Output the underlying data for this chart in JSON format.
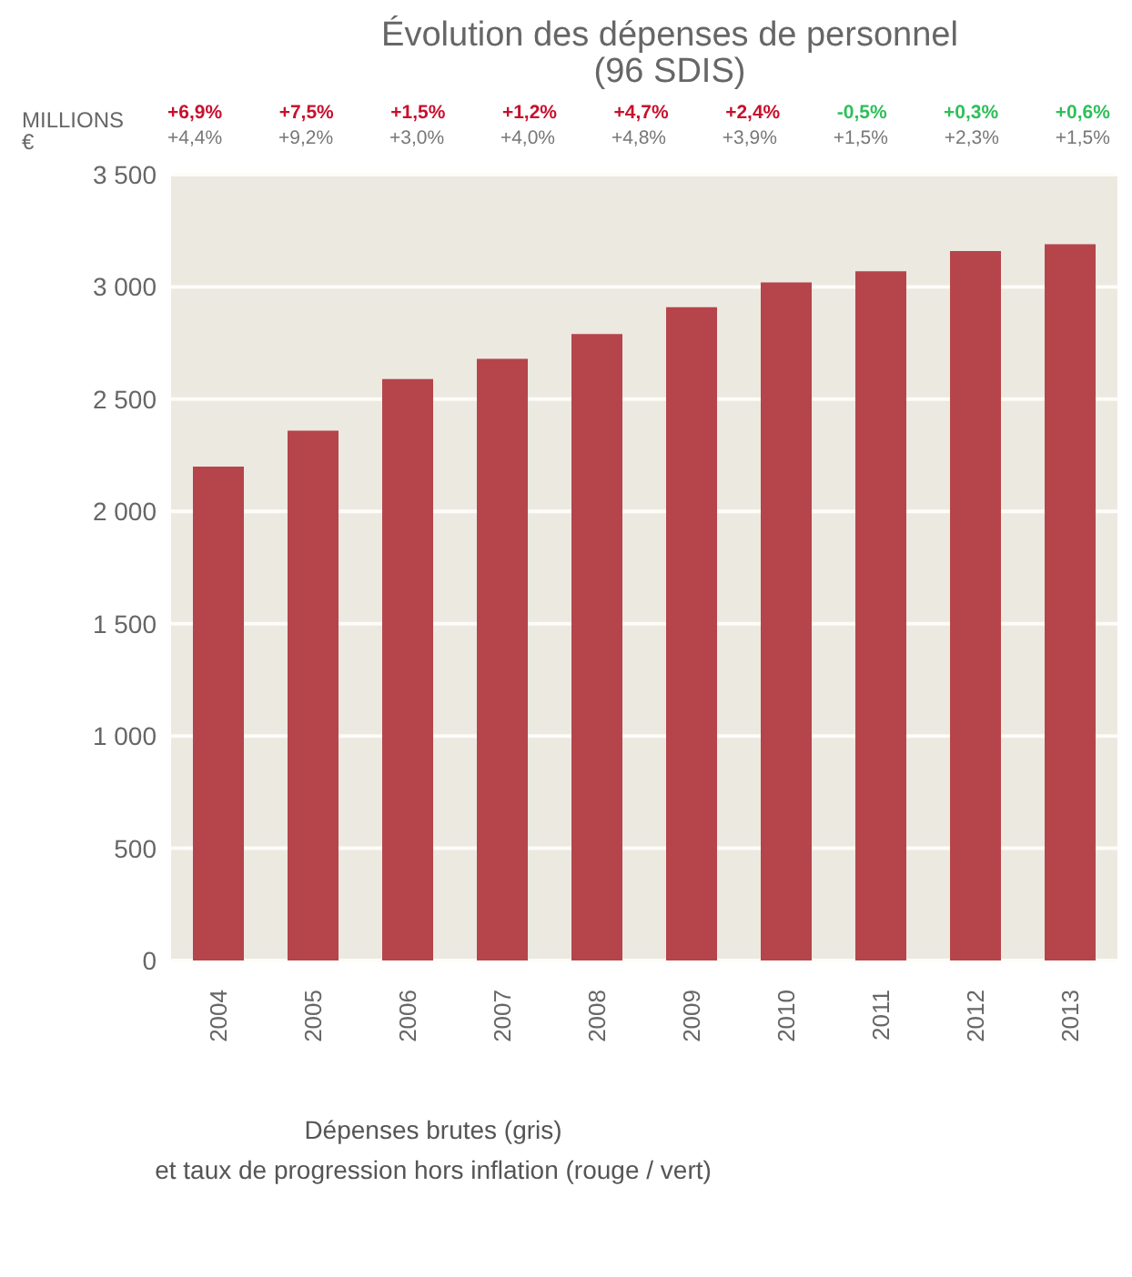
{
  "chart_data": {
    "type": "bar",
    "title": "Évolution des dépenses de personnel\n(96 SDIS)",
    "ylabel": "MILLIONS\n€",
    "xlabel": "Dépenses brutes (gris)\net taux de progression hors inflation (rouge / vert)",
    "annotations": [
      "+6,9%",
      "+7,5%",
      "+1,5%",
      "+1,2%",
      "+4,7%",
      "+2,4%",
      "-0,5%",
      "+0,3%",
      "+0,6%",
      "+4,4%",
      "+9,2%",
      "+3,0%",
      "+4,0%",
      "+4,8%",
      "+3,9%",
      "+1,5%",
      "+2,3%",
      "+1,5%"
    ],
    "categories": [
      "2004",
      "2005",
      "2006",
      "2007",
      "2008",
      "2009",
      "2010",
      "2011",
      "2012",
      "2013"
    ],
    "values": [
      2200,
      2360,
      2590,
      2680,
      2790,
      2910,
      3020,
      3070,
      3160,
      3190
    ],
    "color": "#b5454b",
    "ylim": [
      0,
      3500
    ],
    "yticks": [
      {
        "value": 0,
        "label": "0"
      },
      {
        "value": 500,
        "label": "500"
      },
      {
        "value": 1000,
        "label": "1 000"
      },
      {
        "value": 1500,
        "label": "1 500"
      },
      {
        "value": 2000,
        "label": "2 000"
      },
      {
        "value": 2500,
        "label": "2 500"
      },
      {
        "value": 3000,
        "label": "3 000"
      },
      {
        "value": 3500,
        "label": "3 500"
      }
    ],
    "grid": "y"
  }
}
